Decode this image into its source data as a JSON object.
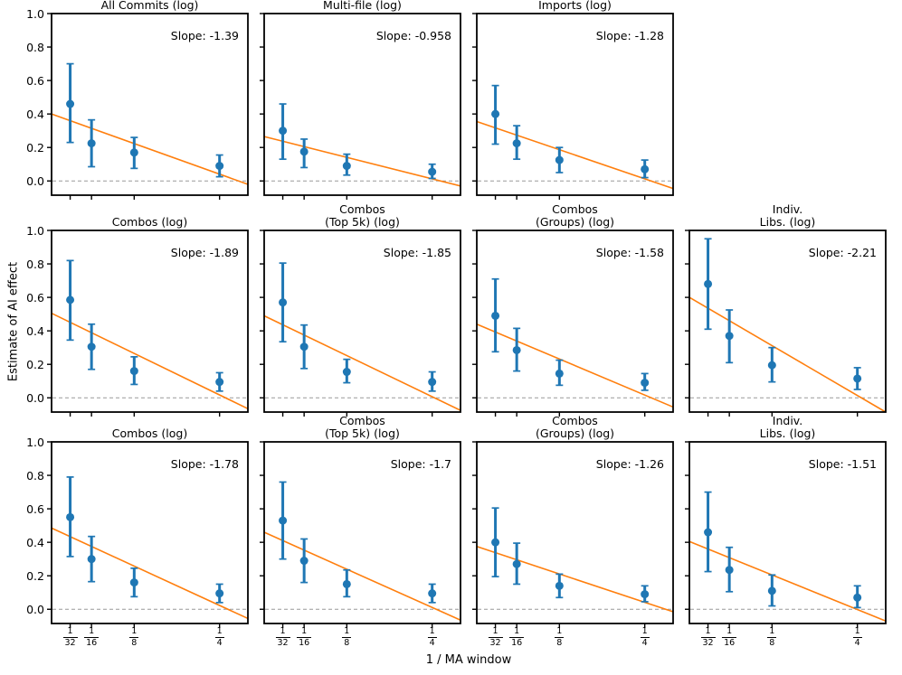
{
  "chart_data": {
    "type": "scatter",
    "description": "Grid of errorbar plots of estimated AI effect vs 1 / moving-average window, each with a linear fit line and dashed zero line",
    "xlabel": "1 / MA window",
    "ylabel": "Estimate of AI effect",
    "x": [
      0.03125,
      0.0625,
      0.125,
      0.25
    ],
    "x_tick_fractions": [
      {
        "num": "1",
        "den": "32"
      },
      {
        "num": "1",
        "den": "16"
      },
      {
        "num": "1",
        "den": "8"
      },
      {
        "num": "1",
        "den": "4"
      }
    ],
    "xlim": [
      0.004,
      0.2915
    ],
    "ylim": [
      -0.085,
      1.0
    ],
    "yticks": [
      0.0,
      0.2,
      0.4,
      0.6,
      0.8,
      1.0
    ],
    "ytick_labels": [
      "0.0",
      "0.2",
      "0.4",
      "0.6",
      "0.8",
      "1.0"
    ],
    "grid": "off",
    "colors": {
      "marker": "#1f77b4",
      "fit_line": "#ff7f0e",
      "zero_line": "#999999",
      "spine": "#000000",
      "background": "#ffffff"
    },
    "panels": [
      {
        "row": 0,
        "col": 0,
        "title": "All Commits (log)",
        "slope_label": "Slope: -1.39",
        "slope": -1.39,
        "y": [
          0.46,
          0.225,
          0.17,
          0.09
        ],
        "err_lo": [
          0.23,
          0.085,
          0.075,
          0.025
        ],
        "err_hi": [
          0.7,
          0.365,
          0.26,
          0.155
        ],
        "fit_line": {
          "y_left": 0.4,
          "y_right": -0.02
        }
      },
      {
        "row": 0,
        "col": 1,
        "title": "Multi-file (log)",
        "slope_label": "Slope: -0.958",
        "slope": -0.958,
        "y": [
          0.3,
          0.175,
          0.09,
          0.055
        ],
        "err_lo": [
          0.13,
          0.08,
          0.035,
          0.015
        ],
        "err_hi": [
          0.46,
          0.25,
          0.16,
          0.1
        ],
        "fit_line": {
          "y_left": 0.265,
          "y_right": -0.03
        }
      },
      {
        "row": 0,
        "col": 2,
        "title": "Imports (log)",
        "slope_label": "Slope: -1.28",
        "slope": -1.28,
        "y": [
          0.4,
          0.225,
          0.125,
          0.07
        ],
        "err_lo": [
          0.22,
          0.13,
          0.05,
          0.02
        ],
        "err_hi": [
          0.57,
          0.33,
          0.2,
          0.125
        ],
        "fit_line": {
          "y_left": 0.355,
          "y_right": -0.045
        }
      },
      {
        "row": 1,
        "col": 0,
        "title": "Combos (log)",
        "slope_label": "Slope: -1.89",
        "slope": -1.89,
        "y": [
          0.585,
          0.305,
          0.16,
          0.095
        ],
        "err_lo": [
          0.345,
          0.17,
          0.08,
          0.04
        ],
        "err_hi": [
          0.82,
          0.44,
          0.245,
          0.15
        ],
        "fit_line": {
          "y_left": 0.505,
          "y_right": -0.065
        }
      },
      {
        "row": 1,
        "col": 1,
        "title": "Combos\n(Top 5k) (log)",
        "slope_label": "Slope: -1.85",
        "slope": -1.85,
        "y": [
          0.57,
          0.305,
          0.155,
          0.095
        ],
        "err_lo": [
          0.335,
          0.175,
          0.09,
          0.04
        ],
        "err_hi": [
          0.805,
          0.435,
          0.23,
          0.155
        ],
        "fit_line": {
          "y_left": 0.49,
          "y_right": -0.075
        }
      },
      {
        "row": 1,
        "col": 2,
        "title": "Combos\n(Groups) (log)",
        "slope_label": "Slope: -1.58",
        "slope": -1.58,
        "y": [
          0.49,
          0.285,
          0.145,
          0.09
        ],
        "err_lo": [
          0.275,
          0.16,
          0.075,
          0.045
        ],
        "err_hi": [
          0.71,
          0.415,
          0.225,
          0.145
        ],
        "fit_line": {
          "y_left": 0.44,
          "y_right": -0.055
        }
      },
      {
        "row": 1,
        "col": 3,
        "title": "Indiv.\nLibs. (log)",
        "slope_label": "Slope: -2.21",
        "slope": -2.21,
        "y": [
          0.68,
          0.37,
          0.195,
          0.115
        ],
        "err_lo": [
          0.41,
          0.21,
          0.095,
          0.05
        ],
        "err_hi": [
          0.95,
          0.525,
          0.3,
          0.18
        ],
        "fit_line": {
          "y_left": 0.6,
          "y_right": -0.085
        }
      },
      {
        "row": 2,
        "col": 0,
        "title": "Combos (log)",
        "slope_label": "Slope: -1.78",
        "slope": -1.78,
        "y": [
          0.55,
          0.3,
          0.16,
          0.095
        ],
        "err_lo": [
          0.315,
          0.165,
          0.075,
          0.04
        ],
        "err_hi": [
          0.79,
          0.435,
          0.245,
          0.15
        ],
        "fit_line": {
          "y_left": 0.485,
          "y_right": -0.055
        }
      },
      {
        "row": 2,
        "col": 1,
        "title": "Combos\n(Top 5k) (log)",
        "slope_label": "Slope: -1.7",
        "slope": -1.7,
        "y": [
          0.53,
          0.29,
          0.15,
          0.095
        ],
        "err_lo": [
          0.3,
          0.16,
          0.075,
          0.04
        ],
        "err_hi": [
          0.76,
          0.42,
          0.235,
          0.15
        ],
        "fit_line": {
          "y_left": 0.46,
          "y_right": -0.065
        }
      },
      {
        "row": 2,
        "col": 2,
        "title": "Combos\n(Groups) (log)",
        "slope_label": "Slope: -1.26",
        "slope": -1.26,
        "y": [
          0.4,
          0.27,
          0.14,
          0.09
        ],
        "err_lo": [
          0.195,
          0.15,
          0.07,
          0.045
        ],
        "err_hi": [
          0.605,
          0.395,
          0.21,
          0.14
        ],
        "fit_line": {
          "y_left": 0.375,
          "y_right": -0.015
        }
      },
      {
        "row": 2,
        "col": 3,
        "title": "Indiv.\nLibs. (log)",
        "slope_label": "Slope: -1.51",
        "slope": -1.51,
        "y": [
          0.46,
          0.235,
          0.11,
          0.07
        ],
        "err_lo": [
          0.225,
          0.105,
          0.02,
          0.01
        ],
        "err_hi": [
          0.7,
          0.37,
          0.205,
          0.14
        ],
        "fit_line": {
          "y_left": 0.405,
          "y_right": -0.07
        }
      }
    ]
  }
}
